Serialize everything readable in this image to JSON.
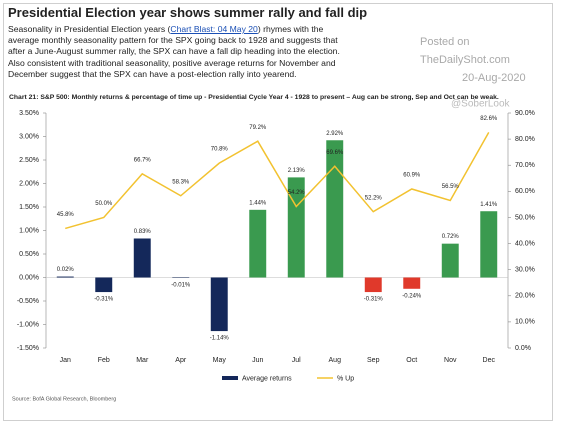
{
  "header": {
    "title": "Presidential Election year shows summer rally and fall dip",
    "text_before": "Seasonality in Presidential Election years (",
    "link": "Chart Blast: 04 May 20",
    "text_after": ") rhymes with the average monthly seasonality pattern for the SPX going back to 1928 and suggests that after a June-August summer rally, the SPX can have a fall dip heading into the election. Also consistent with traditional seasonality, positive average returns for November and December suggest that the SPX can have a post-election rally into yearend."
  },
  "watermark": {
    "line1": "Posted on",
    "line2": "TheDailyShot.com",
    "line3": "20-Aug-2020",
    "handle": "@SoberLook"
  },
  "chart_data": {
    "type": "bar",
    "title": "Chart 21: S&P 500: Monthly returns & percentage of time up - Presidential Cycle Year 4 - 1928 to present – Aug can be strong, Sep and Oct can be weak.",
    "source": "Source: BofA Global Research, Bloomberg",
    "categories": [
      "Jan",
      "Feb",
      "Mar",
      "Apr",
      "May",
      "Jun",
      "Jul",
      "Aug",
      "Sep",
      "Oct",
      "Nov",
      "Dec"
    ],
    "series": [
      {
        "name": "Average returns",
        "type": "bar",
        "color": "#14285a",
        "colors": [
          "#14285a",
          "#14285a",
          "#14285a",
          "#14285a",
          "#14285a",
          "#3a9a4f",
          "#3a9a4f",
          "#3a9a4f",
          "#e0392b",
          "#e0392b",
          "#3a9a4f",
          "#3a9a4f"
        ],
        "values": [
          0.02,
          -0.31,
          0.83,
          -0.01,
          -1.14,
          1.44,
          2.13,
          2.92,
          -0.31,
          -0.24,
          0.72,
          1.41
        ],
        "value_labels": [
          "0.02%",
          "-0.31%",
          "0.83%",
          "-0.01%",
          "-1.14%",
          "1.44%",
          "2.13%",
          "2.92%",
          "-0.31%",
          "-0.24%",
          "0.72%",
          "1.41%"
        ]
      },
      {
        "name": "% Up",
        "type": "line",
        "axis": "y2",
        "color": "#f2c230",
        "values": [
          45.8,
          50.0,
          66.7,
          58.3,
          70.8,
          79.2,
          54.2,
          69.6,
          52.2,
          60.9,
          56.5,
          82.6
        ],
        "value_labels": [
          "45.8%",
          "50.0%",
          "66.7%",
          "58.3%",
          "70.8%",
          "79.2%",
          "54.2%",
          "69.6%",
          "52.2%",
          "60.9%",
          "56.5%",
          "82.6%"
        ]
      }
    ],
    "ylim": [
      -1.5,
      3.5
    ],
    "yticks": [
      {
        "value": -1.5,
        "label": "-1.50%"
      },
      {
        "value": -1.0,
        "label": "-1.00%"
      },
      {
        "value": -0.5,
        "label": "-0.50%"
      },
      {
        "value": 0,
        "label": "0.00%"
      },
      {
        "value": 0.5,
        "label": "0.50%"
      },
      {
        "value": 1.0,
        "label": "1.00%"
      },
      {
        "value": 1.5,
        "label": "1.50%"
      },
      {
        "value": 2.0,
        "label": "2.00%"
      },
      {
        "value": 2.5,
        "label": "2.50%"
      },
      {
        "value": 3.0,
        "label": "3.00%"
      },
      {
        "value": 3.5,
        "label": "3.50%"
      }
    ],
    "y2lim": [
      0,
      90
    ],
    "y2ticks": [
      {
        "value": 0,
        "label": "0.0%"
      },
      {
        "value": 10,
        "label": "10.0%"
      },
      {
        "value": 20,
        "label": "20.0%"
      },
      {
        "value": 30,
        "label": "30.0%"
      },
      {
        "value": 40,
        "label": "40.0%"
      },
      {
        "value": 50,
        "label": "50.0%"
      },
      {
        "value": 60,
        "label": "60.0%"
      },
      {
        "value": 70,
        "label": "70.0%"
      },
      {
        "value": 80,
        "label": "80.0%"
      },
      {
        "value": 90,
        "label": "90.0%"
      }
    ],
    "grid": false
  }
}
